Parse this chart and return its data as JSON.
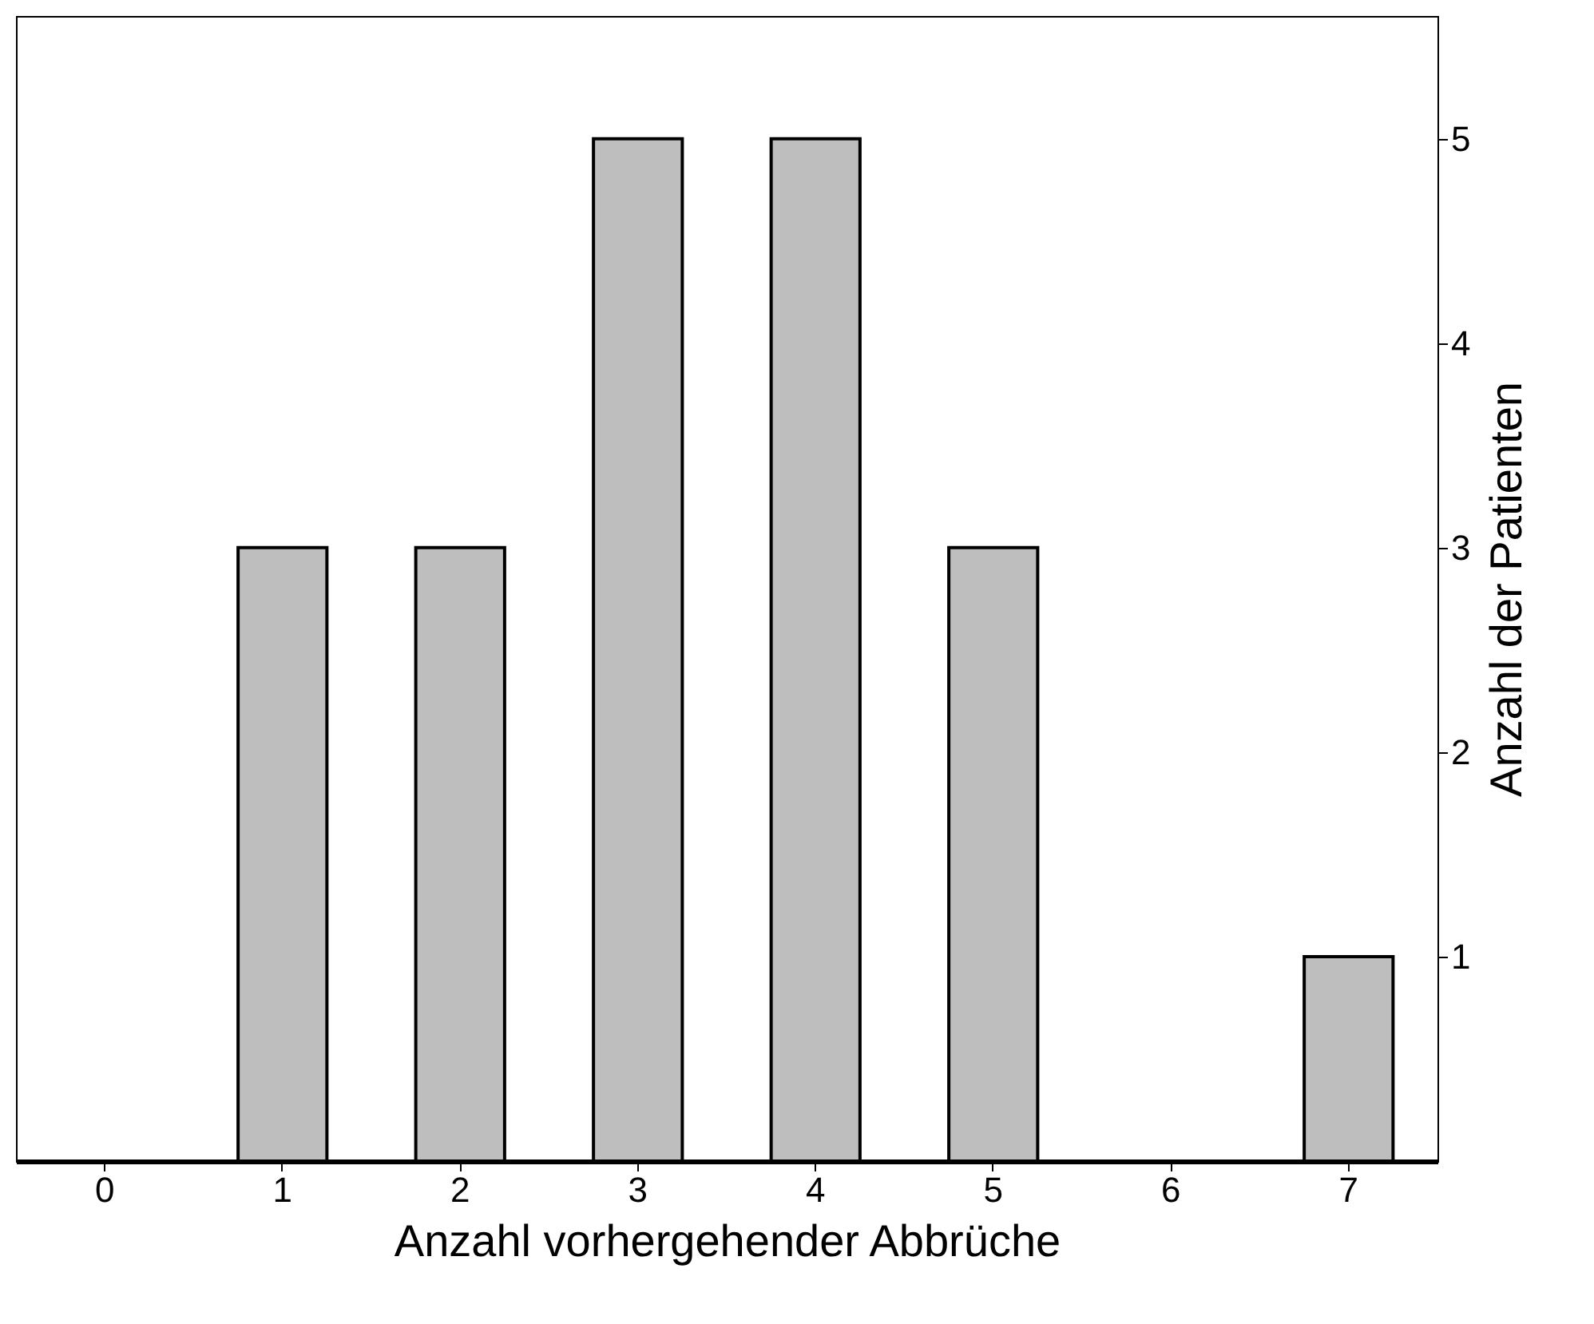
{
  "chart_data": {
    "type": "bar",
    "xlabel": "Anzahl vorhergehender Abbrüche",
    "ylabel": "Anzahl der Patienten",
    "categories": [
      "0",
      "1",
      "2",
      "3",
      "4",
      "5",
      "6",
      "7"
    ],
    "values": [
      0,
      3,
      3,
      5,
      5,
      3,
      0,
      1
    ],
    "color": "#bebebe",
    "ylim": [
      0,
      5.6
    ],
    "yticks": [
      1,
      2,
      3,
      4,
      5
    ],
    "grid": false
  }
}
